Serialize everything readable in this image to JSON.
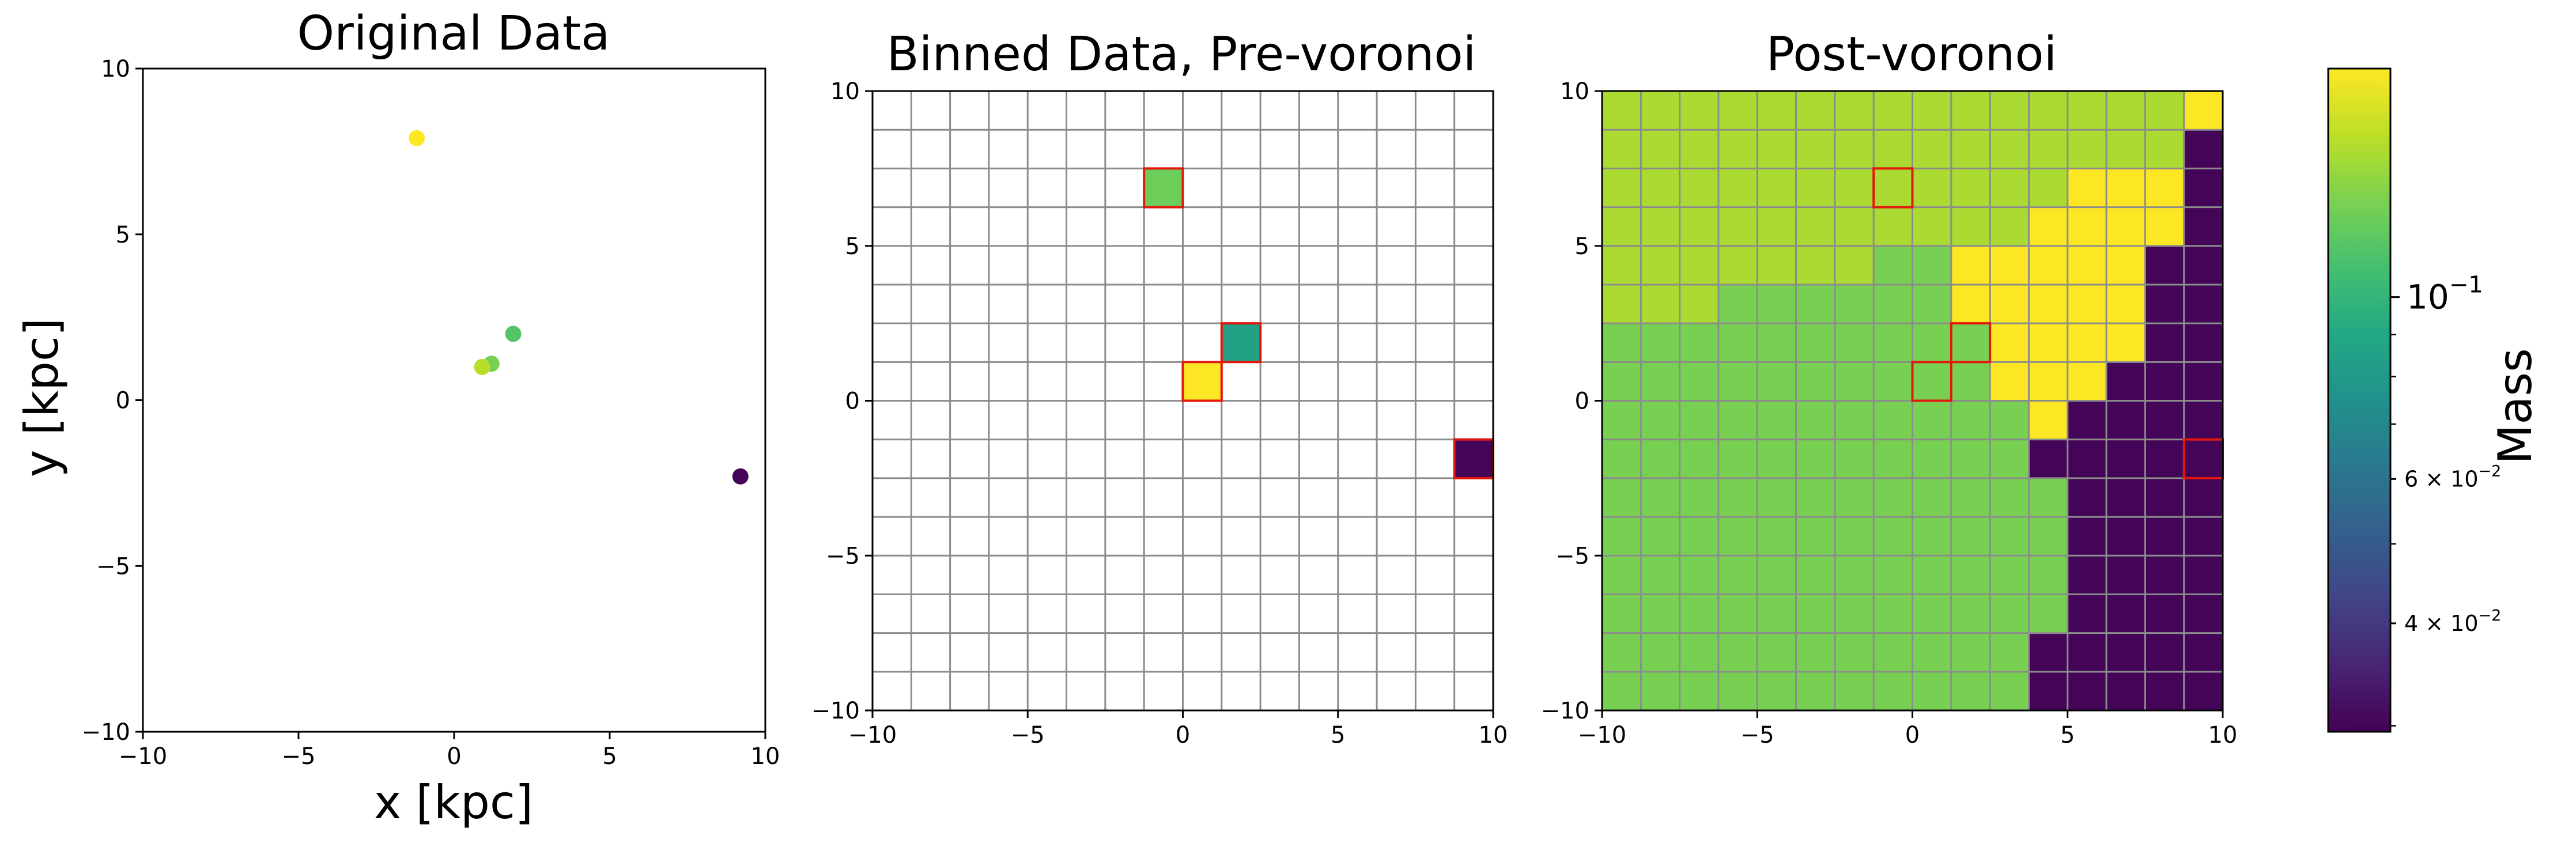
{
  "figure": {
    "colorbar": {
      "label": "Mass",
      "ticks": [
        {
          "value": 0.1,
          "base": "10",
          "exp": "−1",
          "major": true
        },
        {
          "value": 0.06,
          "mant": "6 × 10",
          "exp": "−2",
          "major": false
        },
        {
          "value": 0.04,
          "mant": "4 × 10",
          "exp": "−2",
          "major": false
        }
      ],
      "unlabeled_minor_ticks": [
        0.03,
        0.05,
        0.07,
        0.08,
        0.09
      ],
      "range": [
        0.0295,
        0.19
      ],
      "scale": "log",
      "colormap": "viridis"
    }
  },
  "chart_data": [
    {
      "type": "scatter",
      "title": "Original Data",
      "xlabel": "x [kpc]",
      "ylabel": "y [kpc]",
      "xlim": [
        -10,
        10
      ],
      "ylim": [
        -10,
        10
      ],
      "xticks": [
        -10,
        -5,
        0,
        5,
        10
      ],
      "yticks": [
        -10,
        -5,
        0,
        5,
        10
      ],
      "grid": false,
      "points": [
        {
          "x": -1.2,
          "y": 7.9,
          "mass": 0.19
        },
        {
          "x": 1.9,
          "y": 2.0,
          "mass": 0.115
        },
        {
          "x": 1.2,
          "y": 1.1,
          "mass": 0.13
        },
        {
          "x": 0.9,
          "y": 1.0,
          "mass": 0.155
        },
        {
          "x": 9.2,
          "y": -2.3,
          "mass": 0.03
        }
      ]
    },
    {
      "type": "heatmap",
      "title": "Binned Data, Pre-voronoi",
      "xlim": [
        -10,
        10
      ],
      "ylim": [
        -10,
        10
      ],
      "xticks": [
        -10,
        -5,
        0,
        5,
        10
      ],
      "yticks": [
        -10,
        -5,
        0,
        5,
        10
      ],
      "grid": true,
      "bins": 16,
      "filled_cells": [
        {
          "col": 7,
          "row": 13,
          "mass": 0.125
        },
        {
          "col": 9,
          "row": 9,
          "mass": 0.085
        },
        {
          "col": 8,
          "row": 8,
          "mass": 0.19
        },
        {
          "col": 15,
          "row": 6,
          "mass": 0.03
        }
      ],
      "highlighted_cells": [
        {
          "col": 7,
          "row": 13
        },
        {
          "col": 9,
          "row": 9
        },
        {
          "col": 8,
          "row": 8
        },
        {
          "col": 15,
          "row": 6
        }
      ]
    },
    {
      "type": "heatmap",
      "title": "Post-voronoi",
      "xlim": [
        -10,
        10
      ],
      "ylim": [
        -10,
        10
      ],
      "xticks": [
        -10,
        -5,
        0,
        5,
        10
      ],
      "yticks": [
        -10,
        -5,
        0,
        5,
        10
      ],
      "grid": true,
      "bins": 16,
      "region_masses": {
        "A": 0.15,
        "B": 0.13,
        "C": 0.19,
        "D": 0.03
      },
      "cell_regions": [
        "AAAAAAAAAAAAAAAC",
        "AAAAAAAAAAAAAAAD",
        "AAAAAAAAAAAACCCD",
        "AAAAAAAAAAACCCCD",
        "AAAAAAABBCCCCCDD",
        "AAABBBBBBCCCCCDD",
        "BBBBBBBBBBCCCCDD",
        "BBBBBBBBBBCCCDDD",
        "BBBBBBBBBBBCDDDD",
        "BBBBBBBBBBBDDDDD",
        "BBBBBBBBBBBBDDDD",
        "BBBBBBBBBBBBDDDD",
        "BBBBBBBBBBBBDDDD",
        "BBBBBBBBBBBBDDDD",
        "BBBBBBBBBBBDDDDD",
        "BBBBBBBBBBBDDDDD"
      ],
      "highlighted_cells": [
        {
          "col": 7,
          "row": 13
        },
        {
          "col": 9,
          "row": 9
        },
        {
          "col": 8,
          "row": 8
        },
        {
          "col": 15,
          "row": 6
        }
      ]
    }
  ]
}
